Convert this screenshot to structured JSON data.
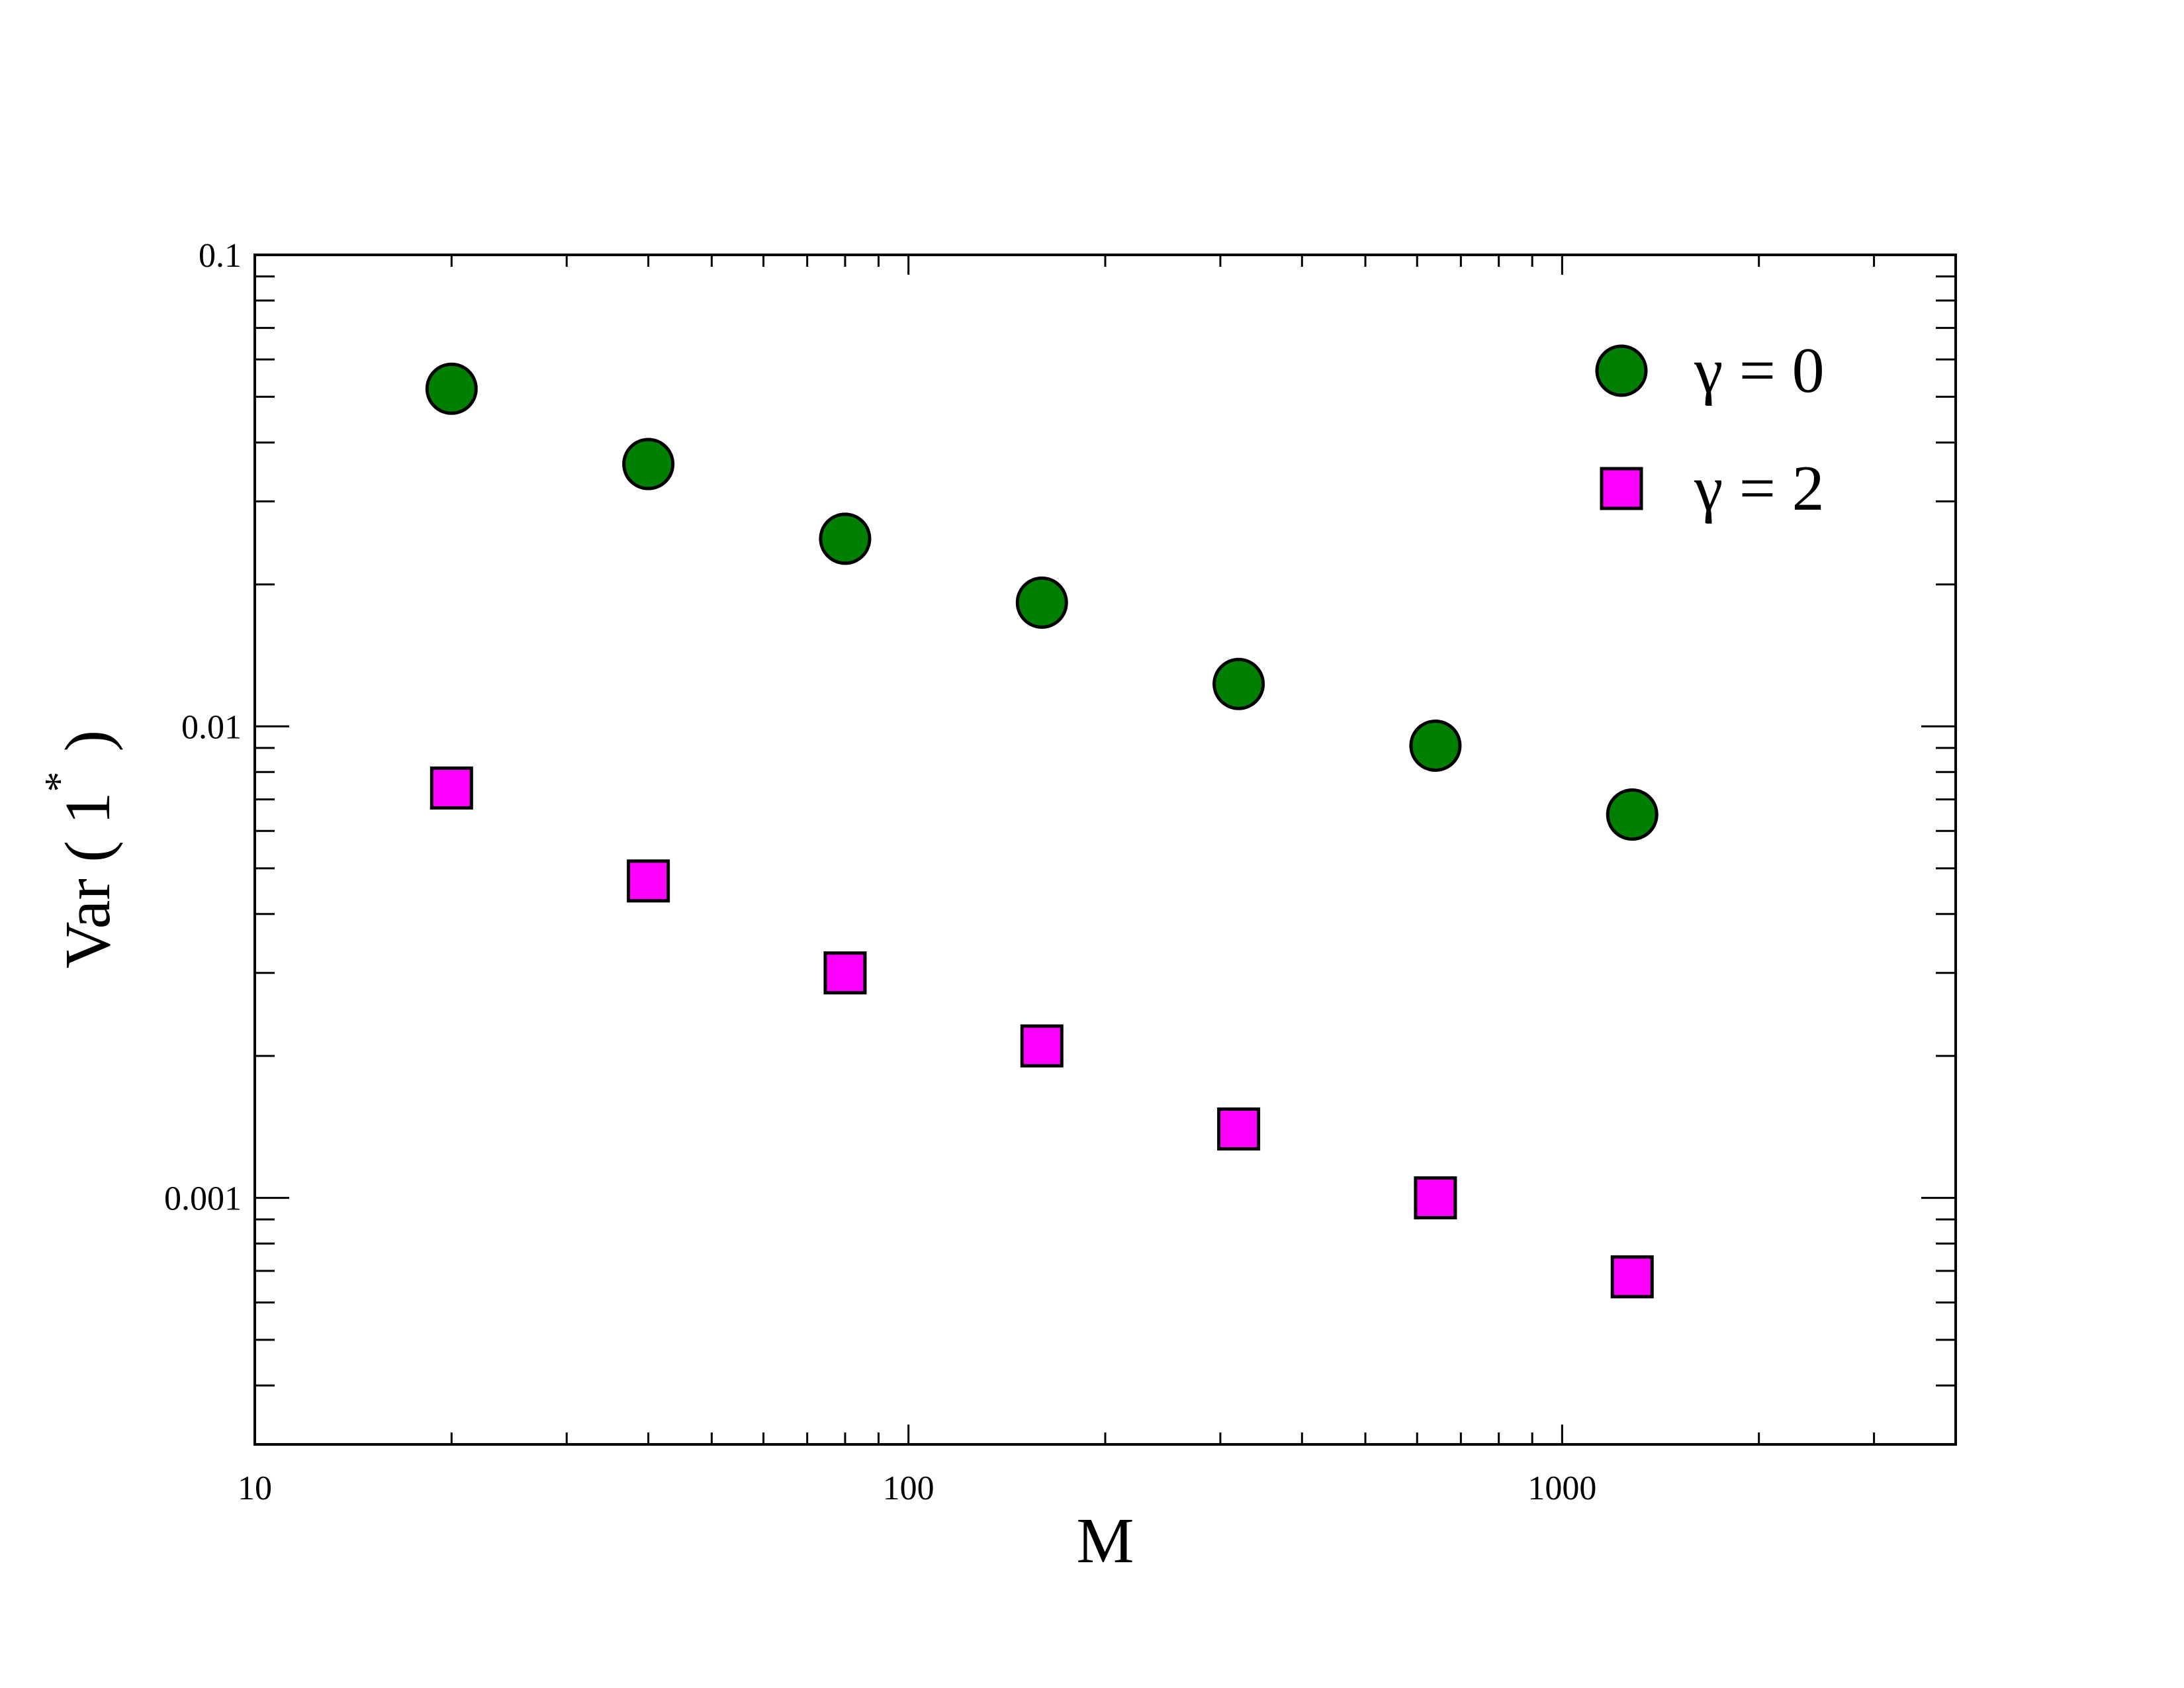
{
  "chart_data": {
    "type": "scatter",
    "xscale": "log",
    "yscale": "log",
    "xlim": [
      10,
      4000
    ],
    "ylim": [
      0.0003,
      0.1
    ],
    "xlabel": "M",
    "ylabel": "Var ( 1",
    "ylabel_superscript": "*",
    "ylabel_close": ")",
    "x_tick_labels": [
      "10",
      "100",
      "1000"
    ],
    "y_tick_labels": [
      "0.1",
      "0.01",
      "0.001"
    ],
    "legend_position": "top-right",
    "grid": false,
    "series": [
      {
        "name": "γ = 0",
        "marker": "circle",
        "color": "#008000",
        "x": [
          20,
          40,
          80,
          160,
          320,
          640,
          1280
        ],
        "y": [
          0.052,
          0.036,
          0.025,
          0.0183,
          0.0123,
          0.0091,
          0.0065
        ]
      },
      {
        "name": "γ = 2",
        "marker": "square",
        "color": "#ff00ff",
        "x": [
          20,
          40,
          80,
          160,
          320,
          640,
          1280
        ],
        "y": [
          0.0074,
          0.0047,
          0.003,
          0.0021,
          0.0014,
          0.001,
          0.00068
        ]
      }
    ]
  }
}
